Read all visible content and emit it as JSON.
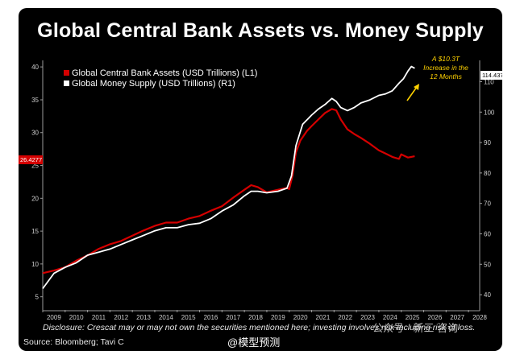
{
  "title": "Global Central Bank Assets vs. Money Supply",
  "disclosure": "Disclosure: Crescat may or may not own the securities mentioned here; investing involves risk including risk of loss.",
  "source": "Source: Bloomberg; Tavi C",
  "watermark_weibo": "@模型预测",
  "watermark_wechat": "公众号 · 新三 咨询",
  "colors": {
    "background": "#000000",
    "central_bank": "#d40000",
    "money_supply": "#ffffff",
    "annotation": "#ffd200"
  },
  "chart_data": {
    "type": "line",
    "title": "Global Central Bank Assets vs. Money Supply",
    "x_tick_labels": [
      "2009",
      "2010",
      "2011",
      "2012",
      "2013",
      "2014",
      "2015",
      "2016",
      "2017",
      "2018",
      "2019",
      "2020",
      "2021",
      "2022",
      "2023",
      "2024",
      "2025",
      "2026",
      "2027",
      "2028"
    ],
    "xlim": [
      2009,
      2028.5
    ],
    "left_axis": {
      "ticks": [
        5,
        10,
        15,
        20,
        25,
        30,
        35,
        40
      ],
      "lim": [
        3,
        41
      ]
    },
    "right_axis": {
      "ticks": [
        40,
        50,
        60,
        70,
        80,
        90,
        100,
        110
      ],
      "lim": [
        35,
        117
      ]
    },
    "legend_position": "top-left",
    "series": [
      {
        "name": "Global Central Bank Assets (USD Trillions) (L1)",
        "axis": "left",
        "color": "#d40000",
        "x": [
          2009.0,
          2009.5,
          2010.0,
          2010.5,
          2011.0,
          2011.5,
          2012.0,
          2012.5,
          2013.0,
          2013.5,
          2014.0,
          2014.5,
          2015.0,
          2015.5,
          2016.0,
          2016.5,
          2017.0,
          2017.5,
          2018.0,
          2018.3,
          2018.6,
          2019.0,
          2019.5,
          2019.9,
          2020.0,
          2020.15,
          2020.3,
          2020.5,
          2020.8,
          2021.0,
          2021.3,
          2021.6,
          2021.9,
          2022.1,
          2022.3,
          2022.6,
          2022.9,
          2023.2,
          2023.6,
          2024.0,
          2024.3,
          2024.6,
          2024.9,
          2025.0,
          2025.3,
          2025.6
        ],
        "values": [
          8.6,
          9.0,
          9.5,
          10.5,
          11.3,
          12.3,
          13.0,
          13.5,
          14.3,
          15.1,
          15.8,
          16.3,
          16.3,
          16.9,
          17.3,
          18.1,
          18.8,
          20.1,
          21.3,
          22.0,
          21.7,
          20.9,
          21.3,
          21.6,
          21.4,
          23.5,
          27.0,
          28.8,
          30.3,
          31.0,
          32.0,
          33.0,
          33.6,
          33.4,
          32.0,
          30.5,
          29.8,
          29.2,
          28.3,
          27.3,
          26.8,
          26.3,
          26.0,
          26.7,
          26.2,
          26.4
        ]
      },
      {
        "name": "Global Money Supply (USD Trillions) (R1)",
        "axis": "right",
        "color": "#ffffff",
        "x": [
          2009.0,
          2009.5,
          2010.0,
          2010.5,
          2011.0,
          2011.5,
          2012.0,
          2012.5,
          2013.0,
          2013.5,
          2014.0,
          2014.5,
          2015.0,
          2015.5,
          2016.0,
          2016.5,
          2017.0,
          2017.5,
          2018.0,
          2018.3,
          2018.6,
          2019.0,
          2019.5,
          2019.9,
          2020.1,
          2020.3,
          2020.6,
          2021.0,
          2021.3,
          2021.6,
          2021.9,
          2022.1,
          2022.3,
          2022.6,
          2022.9,
          2023.2,
          2023.6,
          2024.0,
          2024.3,
          2024.6,
          2024.9,
          2025.1,
          2025.3,
          2025.45,
          2025.6
        ],
        "values": [
          42.0,
          47.0,
          49.0,
          50.5,
          53.0,
          54.0,
          55.0,
          56.5,
          58.0,
          59.5,
          61.0,
          62.0,
          62.0,
          63.0,
          63.5,
          65.0,
          67.5,
          69.5,
          72.5,
          74.0,
          74.0,
          73.5,
          74.0,
          75.0,
          79.0,
          89.0,
          96.0,
          99.0,
          101.0,
          102.5,
          104.5,
          103.5,
          101.5,
          100.5,
          101.5,
          103.0,
          104.0,
          105.5,
          106.0,
          107.0,
          109.5,
          111.0,
          113.5,
          115.0,
          114.4
        ]
      }
    ],
    "last_values": {
      "central_bank": "26.4277",
      "money_supply": "114.4374"
    },
    "annotation": [
      "A $10.3T",
      "Increase in the",
      "12 Months"
    ]
  }
}
